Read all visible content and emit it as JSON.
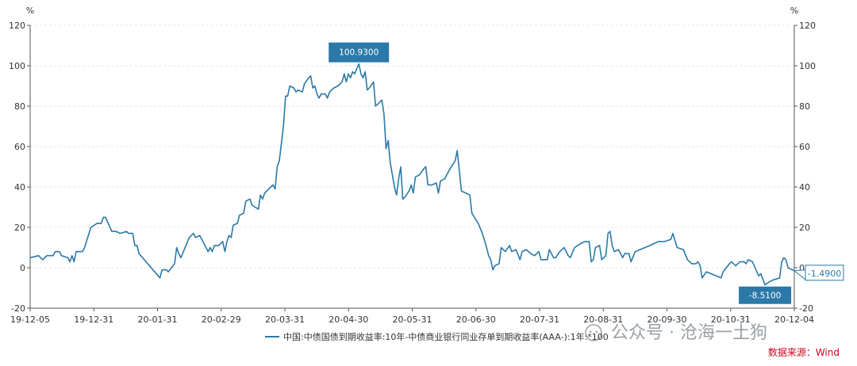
{
  "chart_data": {
    "type": "line",
    "title": "",
    "xlabel": "",
    "ylabel": "",
    "y_unit_left": "%",
    "y_unit_right": "%",
    "ylim": [
      -20,
      120
    ],
    "yticks": [
      "-20",
      "0",
      "20",
      "40",
      "60",
      "80",
      "100",
      "120"
    ],
    "x_tick_labels": [
      "19-12-05",
      "19-12-31",
      "20-01-31",
      "20-02-29",
      "20-03-31",
      "20-04-30",
      "20-05-31",
      "20-06-30",
      "20-07-31",
      "20-08-31",
      "20-09-30",
      "20-10-31",
      "20-12-04"
    ],
    "x_start": "2019-12-05",
    "x_end": "2020-12-04",
    "grid": true,
    "legend_position": "bottom",
    "color": "#2a79a8",
    "series": [
      {
        "name": "中国:中债国债到期收益率:10年-中债商业银行同业存单到期收益率(AAA-):1年:*100",
        "points": [
          [
            "2019-12-05",
            5
          ],
          [
            "2019-12-09",
            6
          ],
          [
            "2019-12-11",
            4
          ],
          [
            "2019-12-13",
            6
          ],
          [
            "2019-12-16",
            6
          ],
          [
            "2019-12-17",
            8
          ],
          [
            "2019-12-19",
            8
          ],
          [
            "2019-12-20",
            6
          ],
          [
            "2019-12-23",
            5
          ],
          [
            "2019-12-24",
            3
          ],
          [
            "2019-12-25",
            6
          ],
          [
            "2019-12-26",
            3
          ],
          [
            "2019-12-27",
            8
          ],
          [
            "2019-12-30",
            8
          ],
          [
            "2019-12-31",
            10
          ],
          [
            "2020-01-03",
            20
          ],
          [
            "2020-01-06",
            22
          ],
          [
            "2020-01-08",
            22
          ],
          [
            "2020-01-09",
            25
          ],
          [
            "2020-01-10",
            25
          ],
          [
            "2020-01-13",
            18
          ],
          [
            "2020-01-15",
            18
          ],
          [
            "2020-01-17",
            17
          ],
          [
            "2020-01-20",
            18
          ],
          [
            "2020-01-21",
            17
          ],
          [
            "2020-01-23",
            17
          ],
          [
            "2020-01-24",
            11
          ],
          [
            "2020-01-25",
            11
          ],
          [
            "2020-01-26",
            7
          ],
          [
            "2020-02-05",
            -5
          ],
          [
            "2020-02-06",
            -1
          ],
          [
            "2020-02-08",
            -1
          ],
          [
            "2020-02-09",
            -2
          ],
          [
            "2020-02-12",
            2
          ],
          [
            "2020-02-13",
            10
          ],
          [
            "2020-02-14",
            7
          ],
          [
            "2020-02-15",
            5
          ],
          [
            "2020-02-17",
            10
          ],
          [
            "2020-02-19",
            15
          ],
          [
            "2020-02-21",
            17
          ],
          [
            "2020-02-22",
            15
          ],
          [
            "2020-02-24",
            16
          ],
          [
            "2020-02-26",
            12
          ],
          [
            "2020-02-28",
            8
          ],
          [
            "2020-02-29",
            10
          ],
          [
            "2020-03-01",
            8
          ],
          [
            "2020-03-02",
            11
          ],
          [
            "2020-03-04",
            11
          ],
          [
            "2020-03-05",
            12
          ],
          [
            "2020-03-06",
            13
          ],
          [
            "2020-03-07",
            8
          ],
          [
            "2020-03-08",
            13
          ],
          [
            "2020-03-09",
            16
          ],
          [
            "2020-03-10",
            15
          ],
          [
            "2020-03-11",
            21
          ],
          [
            "2020-03-13",
            22
          ],
          [
            "2020-03-14",
            26
          ],
          [
            "2020-03-16",
            27
          ],
          [
            "2020-03-17",
            33
          ],
          [
            "2020-03-19",
            34
          ],
          [
            "2020-03-20",
            31
          ],
          [
            "2020-03-23",
            29
          ],
          [
            "2020-03-24",
            36
          ],
          [
            "2020-03-25",
            34
          ],
          [
            "2020-03-26",
            37
          ],
          [
            "2020-03-27",
            38
          ],
          [
            "2020-03-30",
            41
          ],
          [
            "2020-03-31",
            39
          ],
          [
            "2020-04-01",
            50
          ],
          [
            "2020-04-02",
            53
          ],
          [
            "2020-04-04",
            70
          ],
          [
            "2020-04-05",
            85
          ],
          [
            "2020-04-06",
            85
          ],
          [
            "2020-04-07",
            90
          ],
          [
            "2020-04-09",
            89
          ],
          [
            "2020-04-10",
            87
          ],
          [
            "2020-04-11",
            88
          ],
          [
            "2020-04-13",
            87
          ],
          [
            "2020-04-14",
            91
          ],
          [
            "2020-04-16",
            94
          ],
          [
            "2020-04-17",
            95
          ],
          [
            "2020-04-18",
            89
          ],
          [
            "2020-04-19",
            90
          ],
          [
            "2020-04-20",
            86
          ],
          [
            "2020-04-21",
            84
          ],
          [
            "2020-04-22",
            86
          ],
          [
            "2020-04-24",
            86
          ],
          [
            "2020-04-25",
            84
          ],
          [
            "2020-04-26",
            87
          ],
          [
            "2020-04-28",
            89
          ],
          [
            "2020-04-30",
            90
          ],
          [
            "2020-05-02",
            92
          ],
          [
            "2020-05-03",
            96
          ],
          [
            "2020-05-04",
            92
          ],
          [
            "2020-05-05",
            96
          ],
          [
            "2020-05-06",
            94
          ],
          [
            "2020-05-07",
            97
          ],
          [
            "2020-05-08",
            96
          ],
          [
            "2020-05-10",
            100.93
          ],
          [
            "2020-05-11",
            96
          ],
          [
            "2020-05-12",
            94
          ],
          [
            "2020-05-13",
            97
          ],
          [
            "2020-05-14",
            88
          ],
          [
            "2020-05-15",
            89
          ],
          [
            "2020-05-17",
            92
          ],
          [
            "2020-05-18",
            80
          ],
          [
            "2020-05-19",
            81
          ],
          [
            "2020-05-21",
            83
          ],
          [
            "2020-05-22",
            76
          ],
          [
            "2020-05-23",
            59
          ],
          [
            "2020-05-24",
            63
          ],
          [
            "2020-05-25",
            52
          ],
          [
            "2020-05-27",
            40
          ],
          [
            "2020-05-28",
            36
          ],
          [
            "2020-05-29",
            44
          ],
          [
            "2020-05-30",
            50
          ],
          [
            "2020-05-31",
            34
          ],
          [
            "2020-06-01",
            35
          ],
          [
            "2020-06-03",
            38
          ],
          [
            "2020-06-04",
            41
          ],
          [
            "2020-06-05",
            37
          ],
          [
            "2020-06-06",
            45
          ],
          [
            "2020-06-08",
            46
          ],
          [
            "2020-06-10",
            49
          ],
          [
            "2020-06-11",
            50
          ],
          [
            "2020-06-12",
            41
          ],
          [
            "2020-06-14",
            41
          ],
          [
            "2020-06-16",
            42
          ],
          [
            "2020-06-17",
            37
          ],
          [
            "2020-06-18",
            43
          ],
          [
            "2020-06-20",
            44
          ],
          [
            "2020-06-22",
            48
          ],
          [
            "2020-06-25",
            53
          ],
          [
            "2020-06-26",
            58
          ],
          [
            "2020-06-28",
            38
          ],
          [
            "2020-06-30",
            37
          ],
          [
            "2020-07-02",
            36
          ],
          [
            "2020-07-03",
            27
          ],
          [
            "2020-07-06",
            22
          ],
          [
            "2020-07-08",
            17
          ],
          [
            "2020-07-10",
            10
          ],
          [
            "2020-07-11",
            6
          ],
          [
            "2020-07-12",
            4
          ],
          [
            "2020-07-13",
            -1
          ],
          [
            "2020-07-14",
            1
          ],
          [
            "2020-07-16",
            2
          ],
          [
            "2020-07-17",
            10
          ],
          [
            "2020-07-19",
            8
          ],
          [
            "2020-07-21",
            11
          ],
          [
            "2020-07-22",
            8
          ],
          [
            "2020-07-24",
            9
          ],
          [
            "2020-07-26",
            4
          ],
          [
            "2020-07-27",
            8
          ],
          [
            "2020-07-29",
            9
          ],
          [
            "2020-07-31",
            7
          ],
          [
            "2020-08-02",
            6
          ],
          [
            "2020-08-04",
            8
          ],
          [
            "2020-08-05",
            4
          ],
          [
            "2020-08-08",
            4
          ],
          [
            "2020-08-09",
            9
          ],
          [
            "2020-08-11",
            5
          ],
          [
            "2020-08-12",
            5
          ],
          [
            "2020-08-14",
            8
          ],
          [
            "2020-08-16",
            10
          ],
          [
            "2020-08-18",
            6
          ],
          [
            "2020-08-19",
            5
          ],
          [
            "2020-08-21",
            10
          ],
          [
            "2020-08-24",
            12
          ],
          [
            "2020-08-26",
            13
          ],
          [
            "2020-08-28",
            13
          ],
          [
            "2020-08-29",
            3
          ],
          [
            "2020-08-30",
            4
          ],
          [
            "2020-08-31",
            10
          ],
          [
            "2020-09-02",
            11
          ],
          [
            "2020-09-03",
            4
          ],
          [
            "2020-09-05",
            6
          ],
          [
            "2020-09-06",
            17
          ],
          [
            "2020-09-07",
            18
          ],
          [
            "2020-09-08",
            11
          ],
          [
            "2020-09-09",
            8
          ],
          [
            "2020-09-11",
            9
          ],
          [
            "2020-09-13",
            5
          ],
          [
            "2020-09-14",
            7
          ],
          [
            "2020-09-16",
            7
          ],
          [
            "2020-09-17",
            3
          ],
          [
            "2020-09-19",
            8
          ],
          [
            "2020-09-26",
            11
          ],
          [
            "2020-09-30",
            13
          ],
          [
            "2020-10-03",
            13
          ],
          [
            "2020-10-06",
            14
          ],
          [
            "2020-10-07",
            17
          ],
          [
            "2020-10-09",
            10
          ],
          [
            "2020-10-12",
            9
          ],
          [
            "2020-10-14",
            4
          ],
          [
            "2020-10-16",
            2
          ],
          [
            "2020-10-18",
            2
          ],
          [
            "2020-10-19",
            3
          ],
          [
            "2020-10-20",
            1
          ],
          [
            "2020-10-21",
            -5
          ],
          [
            "2020-10-23",
            -2
          ],
          [
            "2020-10-30",
            -5
          ],
          [
            "2020-10-31",
            -2
          ],
          [
            "2020-11-03",
            2
          ],
          [
            "2020-11-04",
            3
          ],
          [
            "2020-11-06",
            1
          ],
          [
            "2020-11-07",
            2
          ],
          [
            "2020-11-08",
            3
          ],
          [
            "2020-11-10",
            3
          ],
          [
            "2020-11-11",
            2
          ],
          [
            "2020-11-12",
            4
          ],
          [
            "2020-11-14",
            3
          ],
          [
            "2020-11-17",
            -4
          ],
          [
            "2020-11-18",
            -3
          ],
          [
            "2020-11-20",
            -8.51
          ],
          [
            "2020-11-22",
            -7
          ],
          [
            "2020-11-24",
            -6
          ],
          [
            "2020-11-27",
            -5
          ],
          [
            "2020-11-28",
            3
          ],
          [
            "2020-11-29",
            5
          ],
          [
            "2020-11-30",
            4
          ],
          [
            "2020-12-01",
            0
          ],
          [
            "2020-12-04",
            -1.49
          ]
        ]
      }
    ],
    "annotations": [
      {
        "label": "100.9300",
        "date": "2020-05-10",
        "value": 100.93
      },
      {
        "label": "-8.5100",
        "date": "2020-11-20",
        "value": -8.51
      },
      {
        "label": "-1.4900",
        "date": "2020-12-04",
        "value": -1.49
      }
    ]
  },
  "source_note": "数据来源：Wind",
  "watermark": "公众号 · 沧海一土狗"
}
